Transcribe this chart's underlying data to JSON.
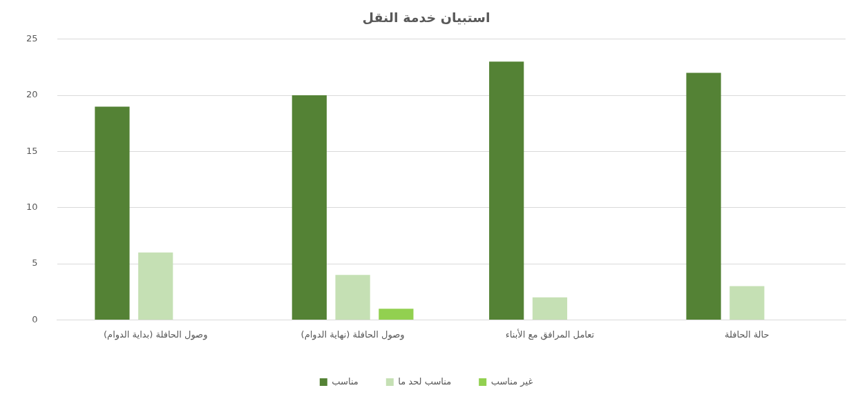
{
  "chart_data": {
    "type": "bar",
    "title": "استبيان خدمة النقل",
    "categories": [
      "وصول الحافلة (بداية الدوام)",
      "وصول الحافلة (نهاية الدوام)",
      "تعامل المرافق مع الأبناء",
      "حالة الحافلة"
    ],
    "series": [
      {
        "name": "مناسب",
        "color": "#548235",
        "values": [
          19,
          20,
          23,
          22
        ]
      },
      {
        "name": "مناسب لحد ما",
        "color": "#c5e0b4",
        "values": [
          6,
          4,
          2,
          3
        ]
      },
      {
        "name": "غير مناسب",
        "color": "#92d050",
        "values": [
          0,
          1,
          0,
          0
        ]
      }
    ],
    "ylim": [
      0,
      25
    ],
    "yticks": [
      0,
      5,
      10,
      15,
      20,
      25
    ],
    "grid": "y",
    "legend": "bottom"
  }
}
